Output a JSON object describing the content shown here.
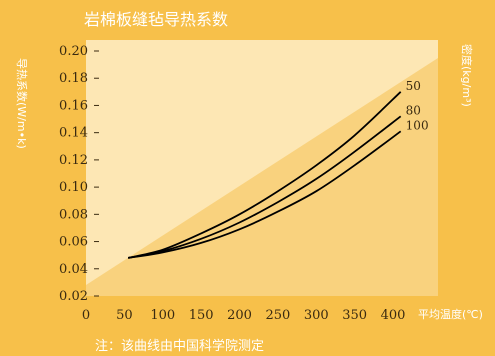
{
  "chart_data": {
    "type": "line",
    "title": "岩棉板缝毡导热系数",
    "ylabel": "导热系数(W/m•k)",
    "xlabel": "平均温度(℃)",
    "legend_title": "密度(kg/m³)",
    "note": "注：该曲线由中国科学院测定",
    "xlim": [
      0,
      400
    ],
    "ylim": [
      0.02,
      0.2
    ],
    "x_ticks": [
      "0",
      "50",
      "100",
      "150",
      "200",
      "250",
      "300",
      "350",
      "400"
    ],
    "y_ticks": [
      "0.02",
      "0.04",
      "0.06",
      "0.08",
      "0.10",
      "0.12",
      "0.14",
      "0.16",
      "0.18",
      "0.20"
    ],
    "grid": false,
    "series": [
      {
        "name": "50",
        "x": [
          55,
          100,
          150,
          200,
          250,
          300,
          350,
          410
        ],
        "y": [
          0.048,
          0.054,
          0.066,
          0.08,
          0.097,
          0.116,
          0.138,
          0.17
        ]
      },
      {
        "name": "80",
        "x": [
          55,
          100,
          150,
          200,
          250,
          300,
          350,
          410
        ],
        "y": [
          0.048,
          0.053,
          0.062,
          0.074,
          0.089,
          0.106,
          0.126,
          0.152
        ]
      },
      {
        "name": "100",
        "x": [
          55,
          100,
          150,
          200,
          250,
          300,
          350,
          410
        ],
        "y": [
          0.048,
          0.052,
          0.059,
          0.069,
          0.082,
          0.097,
          0.116,
          0.141
        ]
      }
    ],
    "colors": {
      "background": "#f7c04a",
      "plot_light": "#fde7b4",
      "plot_dark": "#f9d27e",
      "line": "#000000"
    }
  }
}
